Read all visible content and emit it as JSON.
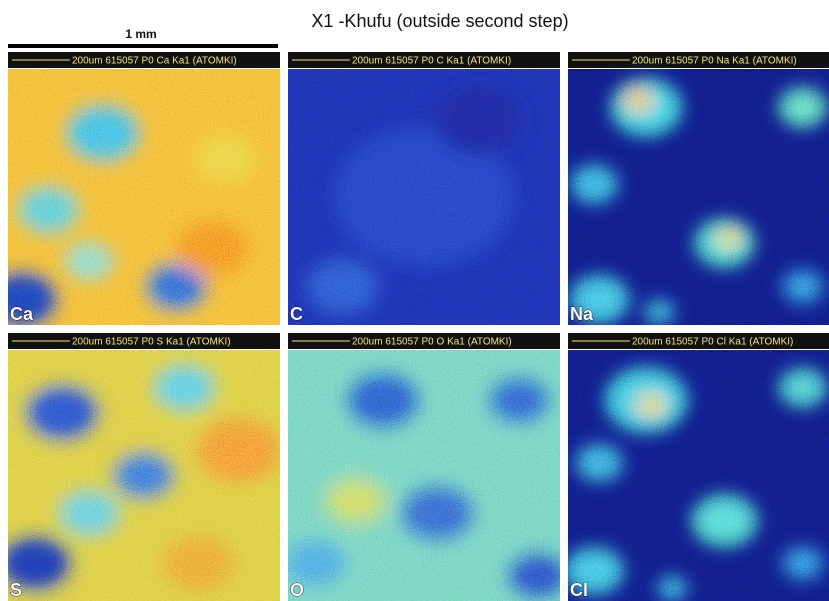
{
  "title": "X1 -Khufu (outside second step)",
  "scale_label": "1 mm",
  "panels": [
    {
      "header": "200um  615057 P0  Ca Ka1 (ATOMKI)",
      "label": "Ca"
    },
    {
      "header": "200um  615057 P0  C  Ka1 (ATOMKI)",
      "label": "C"
    },
    {
      "header": "200um  615057 P0  Na Ka1 (ATOMKI)",
      "label": "Na"
    },
    {
      "header": "200um  615057 P0  S  Ka1 (ATOMKI)",
      "label": "S"
    },
    {
      "header": "200um  615057 P0  O  Ka1 (ATOMKI)",
      "label": "O"
    },
    {
      "header": "200um  615057 P0  Cl Ka1 (ATOMKI)",
      "label": "Cl"
    }
  ]
}
